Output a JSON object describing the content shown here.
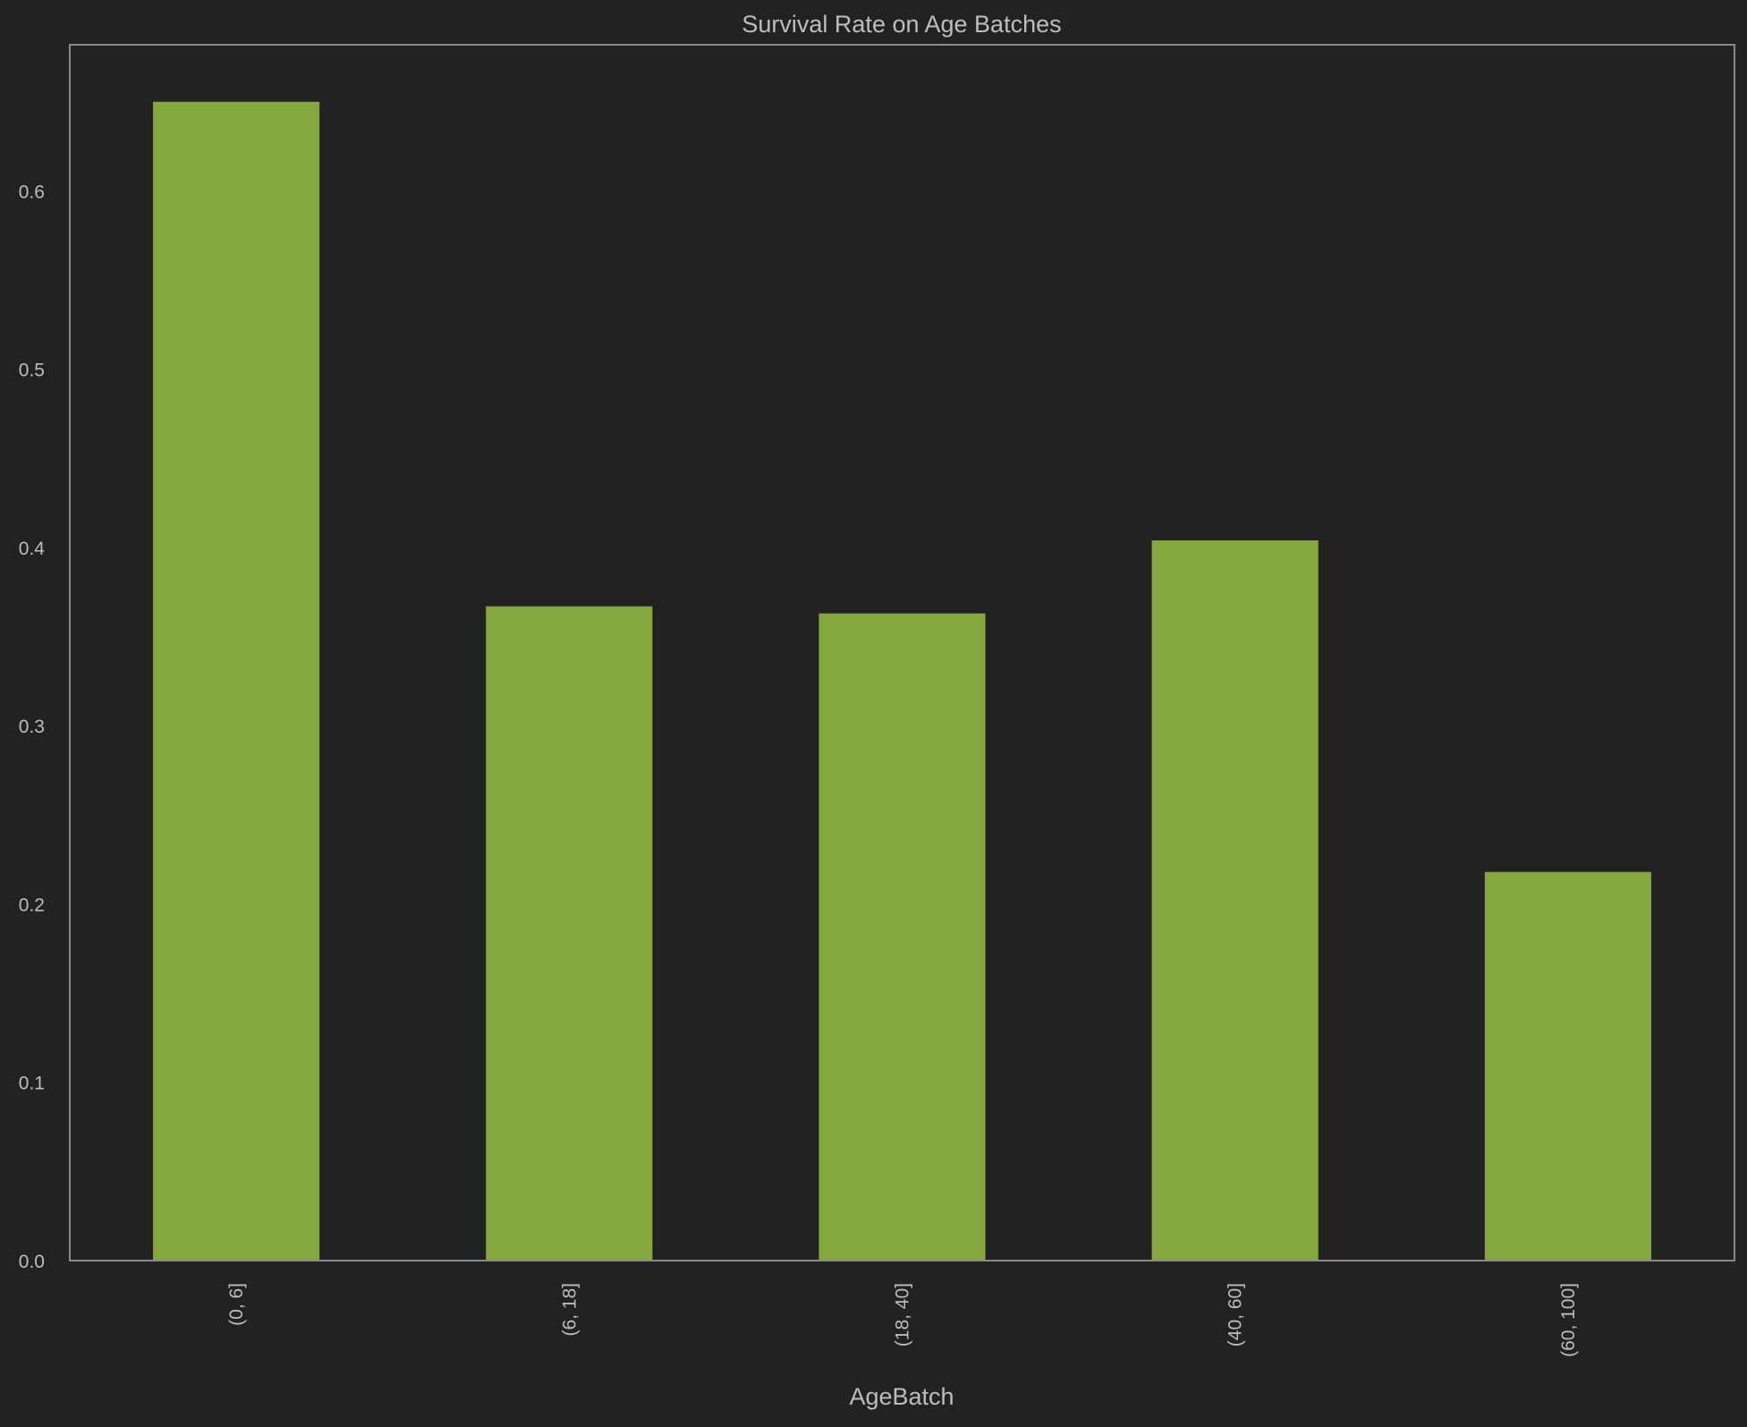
{
  "chart_data": {
    "type": "bar",
    "title": "Survival Rate on Age Batches",
    "xlabel": "AgeBatch",
    "ylabel": "",
    "categories": [
      "(0, 6]",
      "(6, 18]",
      "(18, 40]",
      "(40, 60]",
      "(60, 100]"
    ],
    "values": [
      0.65,
      0.367,
      0.363,
      0.404,
      0.218
    ],
    "ylim": [
      0,
      0.682
    ],
    "yticks": [
      "0.0",
      "0.1",
      "0.2",
      "0.3",
      "0.4",
      "0.5",
      "0.6"
    ],
    "grid": false,
    "bar_color": "#84a83d",
    "background": "#222222"
  }
}
